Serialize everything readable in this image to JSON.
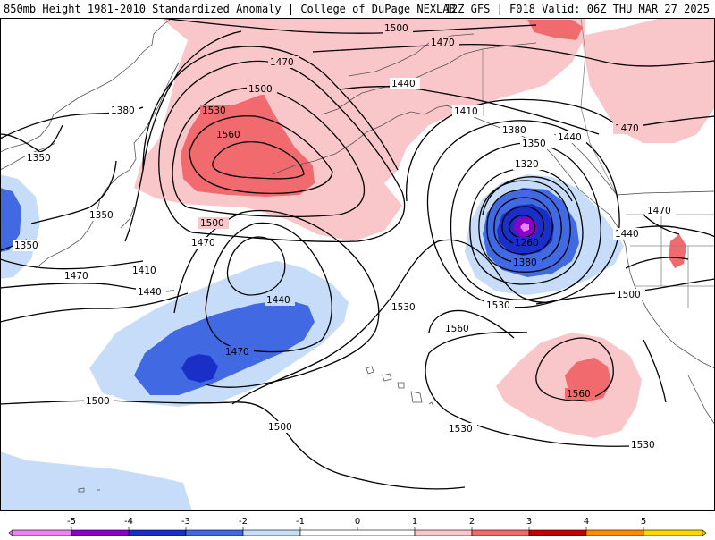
{
  "header": {
    "title_left": "850mb Height 1981-2010 Standardized Anomaly | College of DuPage NEXLAB",
    "title_right": "12Z GFS | F018 Valid: 06Z THU MAR 27 2025"
  },
  "colors": {
    "neg5": "#ee82ee",
    "neg4": "#8a00c8",
    "neg3": "#1a2fc8",
    "neg2": "#4169e1",
    "neg1": "#c6dcf8",
    "pos1": "#f9c6c9",
    "pos2": "#f06a6e",
    "pos3": "#c40000",
    "pos4": "#ff8c00",
    "pos5": "#ffd700"
  },
  "contour_labels": {
    "c1500_top": "1500",
    "c1470_top": "1470",
    "c1470_nw": "1470",
    "c1380_w": "1380",
    "c1350_nw": "1350",
    "c1350_w": "1350",
    "c1350_far_w": "1350",
    "c1500_hi": "1500",
    "c1530_hi": "1530",
    "c1560_hi": "1560",
    "c1500_hi_s": "1500",
    "c1470_hi_s": "1470",
    "c1410_w": "1410",
    "c1470_w": "1470",
    "c1440_w": "1440",
    "c1440_low": "1440",
    "c1470_low": "1470",
    "c1500_sw": "1500",
    "c1500_s": "1500",
    "c1530_c": "1530",
    "c1440_n": "1440",
    "c1410_n": "1410",
    "c1380_n": "1380",
    "c1350_l": "1350",
    "c1320_l": "1320",
    "c1260_l": "1260",
    "c1380_l": "1380",
    "c1440_e": "1440",
    "c1470_e": "1470",
    "c1470_ne": "1470",
    "c1440_ne": "1440",
    "c1500_e": "1500",
    "c1530_se": "1530",
    "c1560_se": "1560",
    "c1560_c": "1560",
    "c1530_ll": "1530",
    "c1530_lr": "1530"
  },
  "legend": {
    "ticks": [
      "-5",
      "-4",
      "-3",
      "-2",
      "-1",
      "0",
      "1",
      "2",
      "3",
      "4",
      "5"
    ]
  }
}
